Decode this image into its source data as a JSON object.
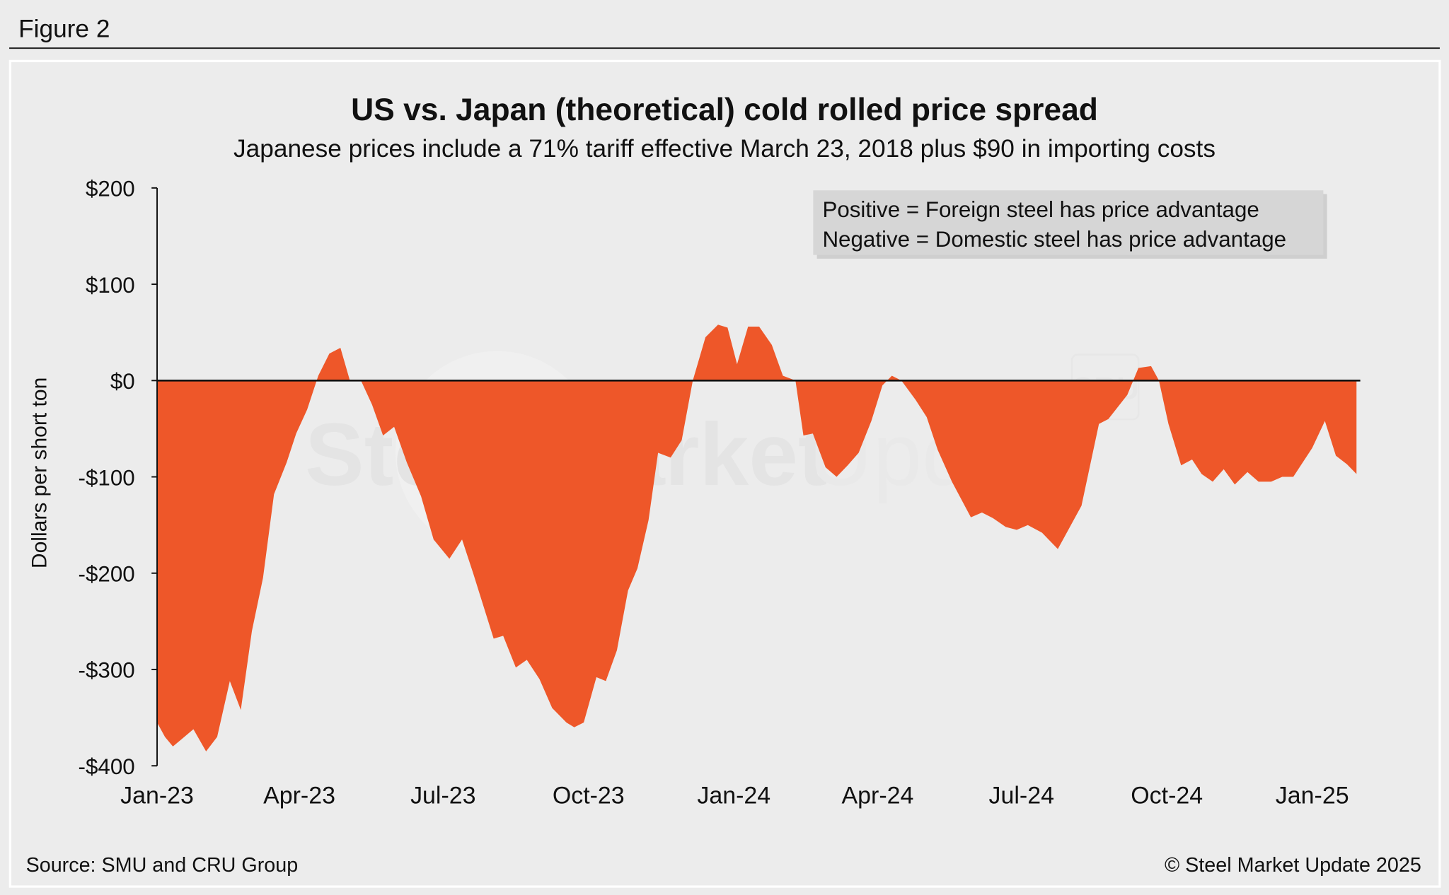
{
  "figure_label": "Figure 2",
  "source": "Source: SMU and CRU Group",
  "copyright": "© Steel Market Update 2025",
  "watermark": [
    "Steel Market Update",
    "CRU"
  ],
  "colors": {
    "fill": "#ee5729",
    "background": "#ececec",
    "zero_line": "#111111"
  },
  "chart_data": {
    "type": "area",
    "title": "US vs. Japan (theoretical) cold rolled price spread",
    "subtitle": "Japanese prices include a 71% tariff effective March 23, 2018 plus $90 in importing costs",
    "ylabel": "Dollars per short ton",
    "xlabel": "",
    "ylim": [
      -400,
      200
    ],
    "yticks": [
      200,
      100,
      0,
      -100,
      -200,
      -300,
      -400
    ],
    "ytick_labels": [
      "$200",
      "$100",
      "$0",
      "-$100",
      "-$200",
      "-$300",
      "-$400"
    ],
    "xticks": [
      "2023-01-01",
      "2023-04-01",
      "2023-07-01",
      "2023-10-01",
      "2024-01-01",
      "2024-04-01",
      "2024-07-01",
      "2024-10-01",
      "2025-01-01"
    ],
    "xtick_labels": [
      "Jan-23",
      "Apr-23",
      "Jul-23",
      "Oct-23",
      "Jan-24",
      "Apr-24",
      "Jul-24",
      "Oct-24",
      "Jan-25"
    ],
    "grid": false,
    "annotation": [
      "Positive = Foreign steel has price advantage",
      "Negative = Domestic steel has price advantage"
    ],
    "x": [
      "2023-01-01",
      "2023-01-06",
      "2023-01-11",
      "2023-01-24",
      "2023-02-01",
      "2023-02-08",
      "2023-02-16",
      "2023-02-23",
      "2023-03-02",
      "2023-03-09",
      "2023-03-16",
      "2023-03-24",
      "2023-03-30",
      "2023-04-06",
      "2023-04-13",
      "2023-04-20",
      "2023-04-27",
      "2023-05-03",
      "2023-05-10",
      "2023-05-17",
      "2023-05-24",
      "2023-05-31",
      "2023-06-08",
      "2023-06-17",
      "2023-06-25",
      "2023-07-05",
      "2023-07-13",
      "2023-07-20",
      "2023-08-02",
      "2023-08-08",
      "2023-08-16",
      "2023-08-23",
      "2023-08-31",
      "2023-09-08",
      "2023-09-17",
      "2023-09-22",
      "2023-09-28",
      "2023-10-06",
      "2023-10-12",
      "2023-10-19",
      "2023-10-26",
      "2023-11-01",
      "2023-11-08",
      "2023-11-14",
      "2023-11-22",
      "2023-11-29",
      "2023-12-06",
      "2023-12-14",
      "2023-12-22",
      "2023-12-28",
      "2024-01-03",
      "2024-01-10",
      "2024-01-17",
      "2024-01-25",
      "2024-02-01",
      "2024-02-09",
      "2024-02-14",
      "2024-02-20",
      "2024-02-28",
      "2024-03-06",
      "2024-03-13",
      "2024-03-20",
      "2024-03-28",
      "2024-04-04",
      "2024-04-10",
      "2024-04-16",
      "2024-04-25",
      "2024-05-02",
      "2024-05-09",
      "2024-05-18",
      "2024-05-30",
      "2024-06-06",
      "2024-06-13",
      "2024-06-21",
      "2024-06-28",
      "2024-07-05",
      "2024-07-14",
      "2024-07-24",
      "2024-08-08",
      "2024-08-19",
      "2024-08-25",
      "2024-09-06",
      "2024-09-13",
      "2024-09-21",
      "2024-09-26",
      "2024-10-02",
      "2024-10-10",
      "2024-10-17",
      "2024-10-23",
      "2024-10-30",
      "2024-11-06",
      "2024-11-13",
      "2024-11-21",
      "2024-11-28",
      "2024-12-06",
      "2024-12-13",
      "2024-12-20",
      "2025-01-01",
      "2025-01-09",
      "2025-01-16",
      "2025-01-23",
      "2025-01-29"
    ],
    "values": [
      -355,
      -370,
      -380,
      -362,
      -385,
      -370,
      -312,
      -342,
      -260,
      -205,
      -118,
      -85,
      -55,
      -30,
      5,
      28,
      34,
      0,
      0,
      -25,
      -57,
      -48,
      -85,
      -120,
      -165,
      -185,
      -165,
      -200,
      -268,
      -265,
      -298,
      -290,
      -310,
      -340,
      -355,
      -360,
      -355,
      -308,
      -312,
      -280,
      -218,
      -195,
      -145,
      -75,
      -80,
      -62,
      0,
      45,
      58,
      55,
      17,
      56,
      56,
      37,
      5,
      0,
      -57,
      -55,
      -90,
      -100,
      -88,
      -75,
      -42,
      -5,
      5,
      0,
      -20,
      -38,
      -72,
      -105,
      -142,
      -137,
      -143,
      -152,
      -155,
      -150,
      -158,
      -175,
      -130,
      -45,
      -40,
      -15,
      13,
      15,
      0,
      -45,
      -88,
      -82,
      -97,
      -105,
      -92,
      -108,
      -95,
      -105,
      -105,
      -100,
      -100,
      -70,
      -42,
      -78,
      -87,
      -97
    ]
  }
}
